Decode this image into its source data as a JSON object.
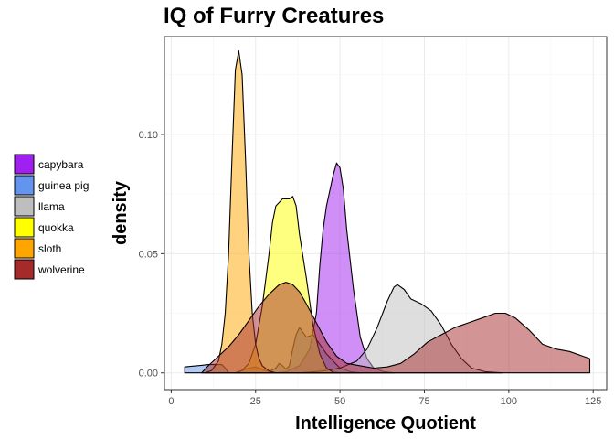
{
  "chart_data": {
    "type": "area",
    "subtype": "density",
    "title": "IQ of Furry Creatures",
    "xlabel": "Intelligence Quotient",
    "ylabel": "density",
    "xlim": [
      -2,
      129
    ],
    "ylim": [
      -0.007,
      0.141
    ],
    "x_ticks": [
      0,
      25,
      50,
      75,
      100,
      125
    ],
    "y_ticks": [
      0.0,
      0.05,
      0.1
    ],
    "y_tick_labels": [
      "0.00",
      "0.05",
      "0.10"
    ],
    "grid": true,
    "legend_position": "left",
    "series": [
      {
        "name": "capybara",
        "color": "#A020F0",
        "opacity": 0.5,
        "points": [
          [
            31,
            0
          ],
          [
            34,
            0.0005
          ],
          [
            38,
            0.003
          ],
          [
            41,
            0.01
          ],
          [
            43,
            0.025
          ],
          [
            44,
            0.045
          ],
          [
            45,
            0.06
          ],
          [
            46,
            0.07
          ],
          [
            48,
            0.083
          ],
          [
            49,
            0.088
          ],
          [
            50,
            0.086
          ],
          [
            51,
            0.077
          ],
          [
            52,
            0.06
          ],
          [
            54,
            0.035
          ],
          [
            56,
            0.015
          ],
          [
            58,
            0.006
          ],
          [
            60,
            0.002
          ],
          [
            63,
            0.0005
          ],
          [
            66,
            0
          ]
        ]
      },
      {
        "name": "guinea pig",
        "color": "#6495ED",
        "opacity": 0.5,
        "points": [
          [
            4,
            0.0025
          ],
          [
            6,
            0.0028
          ],
          [
            9,
            0.0032
          ],
          [
            11,
            0.0035
          ],
          [
            13,
            0.0036
          ],
          [
            15,
            0.0035
          ],
          [
            16,
            0.002
          ],
          [
            17,
            0
          ],
          [
            19,
            0
          ],
          [
            21,
            0.001
          ],
          [
            23,
            0.002
          ],
          [
            25,
            0.0025
          ],
          [
            27,
            0.0015
          ],
          [
            29,
            0.0005
          ],
          [
            31,
            0.002
          ],
          [
            32,
            0.004
          ],
          [
            33,
            0.003
          ],
          [
            34,
            0.0015
          ],
          [
            35,
            0.003
          ],
          [
            36,
            0.01
          ],
          [
            37,
            0.016
          ],
          [
            38,
            0.019
          ],
          [
            39,
            0.017
          ],
          [
            40,
            0.015
          ],
          [
            42,
            0.016
          ],
          [
            44,
            0.012
          ],
          [
            46,
            0.008
          ],
          [
            48,
            0.005
          ],
          [
            50,
            0.002
          ],
          [
            53,
            0.0005
          ],
          [
            56,
            0
          ]
        ]
      },
      {
        "name": "llama",
        "color": "#BEBEBE",
        "opacity": 0.5,
        "points": [
          [
            38,
            0
          ],
          [
            45,
            0.0008
          ],
          [
            50,
            0.002
          ],
          [
            55,
            0.005
          ],
          [
            58,
            0.01
          ],
          [
            61,
            0.019
          ],
          [
            64,
            0.03
          ],
          [
            66,
            0.036
          ],
          [
            67,
            0.037
          ],
          [
            69,
            0.035
          ],
          [
            71,
            0.031
          ],
          [
            74,
            0.029
          ],
          [
            77,
            0.026
          ],
          [
            80,
            0.02
          ],
          [
            83,
            0.012
          ],
          [
            86,
            0.006
          ],
          [
            89,
            0.002
          ],
          [
            93,
            0.0005
          ],
          [
            98,
            0
          ]
        ]
      },
      {
        "name": "quokka",
        "color": "#FFFF00",
        "opacity": 0.5,
        "points": [
          [
            19,
            0
          ],
          [
            21,
            0.001
          ],
          [
            23,
            0.004
          ],
          [
            25,
            0.012
          ],
          [
            27,
            0.028
          ],
          [
            29,
            0.05
          ],
          [
            30,
            0.063
          ],
          [
            31,
            0.07
          ],
          [
            33,
            0.073
          ],
          [
            35,
            0.073
          ],
          [
            36,
            0.074
          ],
          [
            37,
            0.07
          ],
          [
            38,
            0.058
          ],
          [
            40,
            0.04
          ],
          [
            42,
            0.02
          ],
          [
            44,
            0.008
          ],
          [
            46,
            0.002
          ],
          [
            48,
            0.0003
          ],
          [
            50,
            0
          ]
        ]
      },
      {
        "name": "sloth",
        "color": "#FFA500",
        "opacity": 0.5,
        "points": [
          [
            10,
            0
          ],
          [
            12,
            0.001
          ],
          [
            14,
            0.005
          ],
          [
            15,
            0.012
          ],
          [
            16,
            0.025
          ],
          [
            17,
            0.05
          ],
          [
            18,
            0.09
          ],
          [
            19,
            0.127
          ],
          [
            20,
            0.135
          ],
          [
            21,
            0.125
          ],
          [
            22,
            0.09
          ],
          [
            23,
            0.05
          ],
          [
            24,
            0.025
          ],
          [
            25,
            0.012
          ],
          [
            26,
            0.006
          ],
          [
            27,
            0.003
          ],
          [
            29,
            0.0008
          ],
          [
            31,
            0
          ]
        ]
      },
      {
        "name": "wolverine",
        "color": "#A52A2A",
        "opacity": 0.5,
        "points": [
          [
            9,
            0
          ],
          [
            11,
            0.003
          ],
          [
            14,
            0.007
          ],
          [
            17,
            0.011
          ],
          [
            20,
            0.016
          ],
          [
            23,
            0.022
          ],
          [
            26,
            0.028
          ],
          [
            29,
            0.033
          ],
          [
            32,
            0.037
          ],
          [
            34,
            0.038
          ],
          [
            36,
            0.037
          ],
          [
            38,
            0.034
          ],
          [
            40,
            0.029
          ],
          [
            43,
            0.021
          ],
          [
            46,
            0.013
          ],
          [
            49,
            0.007
          ],
          [
            52,
            0.004
          ],
          [
            56,
            0.003
          ],
          [
            60,
            0.002
          ],
          [
            64,
            0.0025
          ],
          [
            68,
            0.004
          ],
          [
            72,
            0.008
          ],
          [
            76,
            0.013
          ],
          [
            80,
            0.016
          ],
          [
            84,
            0.019
          ],
          [
            88,
            0.021
          ],
          [
            92,
            0.023
          ],
          [
            96,
            0.025
          ],
          [
            99,
            0.025
          ],
          [
            102,
            0.023
          ],
          [
            106,
            0.018
          ],
          [
            110,
            0.012
          ],
          [
            114,
            0.01
          ],
          [
            118,
            0.009
          ],
          [
            122,
            0.007
          ],
          [
            124,
            0.006
          ],
          [
            124,
            0
          ]
        ]
      }
    ]
  }
}
